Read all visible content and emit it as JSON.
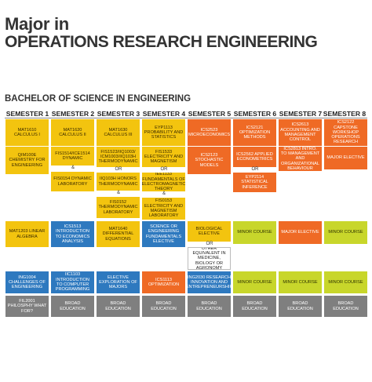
{
  "header": {
    "title_line1": "Major in",
    "title_line2": "OPERATIONS RESEARCH ENGINEERING",
    "subtitle": "BACHELOR OF SCIENCE IN ENGINEERING"
  },
  "semesters": [
    "SEMESTER 1",
    "SEMESTER 2",
    "SEMESTER 3",
    "SEMESTER 4",
    "SEMESTER 5",
    "SEMESTER 6",
    "SEMESTER 7",
    "SEMESTER 8"
  ],
  "colors": {
    "yellow": "#f3c40f",
    "orange": "#ef6a25",
    "blue": "#2e79bf",
    "lime": "#c8d62b",
    "grey": "#7f7f7f"
  },
  "courses": {
    "s1_mat1610": "MAT1610 CALCULUS I",
    "s1_qim100e": "QIM100E CHEMISTRY FOR ENGINEERING",
    "s1_mat1203": "MAT1203 LINEAR ALGEBRA",
    "s1_ing1004": "ING1004 CHALLENGES OF ENGINEERING",
    "s1_fil2001": "FIL2001 PHILOSPHY WHAT FOR?",
    "s2_mat1620": "MAT1620 CALCULUS II",
    "s2_fis1514": "FIS1514/ICE1514 DYNAMIC",
    "s2_amp": "&",
    "s2_fis0154": "FIS0154 DYNAMIC LABORATORY",
    "s2_ics1513": "ICS1513 INTRODUCTION TO ECONOMICS ANALYSIS",
    "s2_iic1103": "IIC1103 INTRODUCTION TO COMPUTER PROGRAMMING",
    "s2_broad": "BROAD EDUCATION",
    "s3_mat1630": "MAT1630 CALCULUS III",
    "s3_fis1523": "FIS1523/IIQ1003/ ICM1003/IIQ103H THERMODYNAMIC",
    "s3_or": "OR",
    "s3_iiq103h": "IIQ103H HONORS THERMODYNAMIC",
    "s3_amp": "&",
    "s3_fis0152": "FIS0152 THERMODYNAMIC LABORATORY",
    "s3_mat1640": "MAT1640 DIFFERENTIAL EQUATIONS",
    "s3_elective": "ELECTIVE EXPLORATION OF MAJORS",
    "s3_broad": "BROAD EDUCATION",
    "s4_eyp1113": "EYP1113 PROBABILITY AND STATISTICS",
    "s4_fis1533": "FIS1533 ELECTRICITY AND MAGNETISM",
    "s4_or": "OR",
    "s4_iee1133": "IEE1133 FUNDAMENTALS OF ELECTROMAGNETIC THEORY",
    "s4_amp": "&",
    "s4_fis0153": "FIS0153 ELECTRICITY AND MAGNETISM LABORATORY",
    "s4_science": "SCIENCE OR ENGINEERING FUNDAMENTALS ELECTIVE",
    "s4_ics1113": "ICS1113 OPTIMIZATION",
    "s4_broad": "BROAD EDUCATION",
    "s5_ics2523": "ICS2523 MICROECONOMICS",
    "s5_ics2123": "ICS2123 STOCHASTIC MODELS",
    "s5_bio": "BIOLOGICAL ELECTIVE",
    "s5_or": "OR",
    "s5_other": "OTHER EQUIVALENT IN MEDICINE, BIOLOGY OR AGRONOMY",
    "s5_ing2030": "ING2030 RESEARCH INNOVATION AND ENTREPRENEURSHIP",
    "s5_broad": "BROAD EDUCATION",
    "s6_ics2121": "ICS2121 OPTIMIZATION METHODS",
    "s6_ics2562": "ICS2562 APPLIED ECONOMETRICS",
    "s6_or": "OR",
    "s6_eyp2114": "EYP2114 STATISTICAL INFERENCE",
    "s6_minor": "MINOR COURSE",
    "s6_minor2": "MINOR COURSE",
    "s6_broad": "BROAD EDUCATION",
    "s7_ics2613": "ICS2613 ACCOUNTING AND MANAGEMENT CONTROL",
    "s7_ics2813": "ICS2813 INTRO. TO MANAGEMENT AND ORGANIZATIONAL BEHAVIOUR",
    "s7_major": "MAJOR ELECTIVE",
    "s7_minor": "MINOR COURSE",
    "s7_broad": "BROAD EDUCATION",
    "s8_ics2122": "ICS2122 CAPSTONE WORKSHOP OPERATIONS RESEARCH",
    "s8_major": "MAJOR ELECTIVE",
    "s8_minor": "MINOR COURSE",
    "s8_minor2": "MINOR COURSE",
    "s8_broad": "BROAD EDUCATION"
  }
}
